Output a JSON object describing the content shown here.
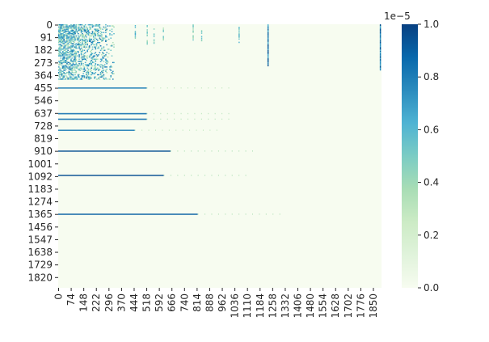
{
  "chart_data": {
    "type": "heatmap",
    "n_rows": 1900,
    "n_cols": 1900,
    "x_ticks": [
      "0",
      "74",
      "148",
      "222",
      "296",
      "370",
      "444",
      "518",
      "592",
      "666",
      "740",
      "814",
      "888",
      "962",
      "1036",
      "1110",
      "1184",
      "1258",
      "1332",
      "1406",
      "1480",
      "1554",
      "1628",
      "1702",
      "1776",
      "1850"
    ],
    "y_ticks": [
      "0",
      "91",
      "182",
      "273",
      "364",
      "455",
      "546",
      "637",
      "728",
      "819",
      "910",
      "1001",
      "1092",
      "1183",
      "1274",
      "1365",
      "1456",
      "1547",
      "1638",
      "1729",
      "1820"
    ],
    "colorbar": {
      "ticks": [
        "0.0",
        "0.2",
        "0.4",
        "0.6",
        "0.8",
        "1.0"
      ],
      "tick_values": [
        0,
        0.2,
        0.4,
        0.6,
        0.8,
        1.0
      ],
      "exponent_label": "1e−5",
      "vmin": 0,
      "vmax": 1.0
    },
    "colormap": [
      "#f7fcf0",
      "#e0f3db",
      "#ccebc5",
      "#a8ddb5",
      "#7bccc4",
      "#4eb3d3",
      "#2b8cbe",
      "#0868ac",
      "#084081"
    ],
    "xlabel": "",
    "ylabel": "",
    "title": "",
    "grid": false,
    "dense_block": {
      "row_range": [
        0,
        400
      ],
      "col_range": [
        0,
        330
      ],
      "value": 0.85
    },
    "row_bands": [
      {
        "row": 455,
        "col_range": [
          0,
          520
        ],
        "value": 0.8
      },
      {
        "row": 640,
        "col_range": [
          0,
          520
        ],
        "value": 0.85
      },
      {
        "row": 680,
        "col_range": [
          0,
          520
        ],
        "value": 0.85
      },
      {
        "row": 760,
        "col_range": [
          0,
          450
        ],
        "value": 0.8
      },
      {
        "row": 910,
        "col_range": [
          0,
          660
        ],
        "value": 0.95
      },
      {
        "row": 1085,
        "col_range": [
          0,
          620
        ],
        "value": 0.95
      },
      {
        "row": 1365,
        "col_range": [
          0,
          820
        ],
        "value": 0.9
      }
    ],
    "col_bands": [
      {
        "col": 450,
        "row_range": [
          0,
          100
        ],
        "value": 0.7
      },
      {
        "col": 520,
        "row_range": [
          0,
          140
        ],
        "value": 0.6
      },
      {
        "col": 560,
        "row_range": [
          0,
          140
        ],
        "value": 0.6
      },
      {
        "col": 615,
        "row_range": [
          0,
          120
        ],
        "value": 0.6
      },
      {
        "col": 790,
        "row_range": [
          0,
          120
        ],
        "value": 0.6
      },
      {
        "col": 840,
        "row_range": [
          0,
          120
        ],
        "value": 0.6
      },
      {
        "col": 1060,
        "row_range": [
          0,
          130
        ],
        "value": 0.7
      },
      {
        "col": 1230,
        "row_range": [
          0,
          300
        ],
        "value": 1.0
      },
      {
        "col": 1890,
        "row_range": [
          0,
          330
        ],
        "value": 1.0
      }
    ]
  }
}
